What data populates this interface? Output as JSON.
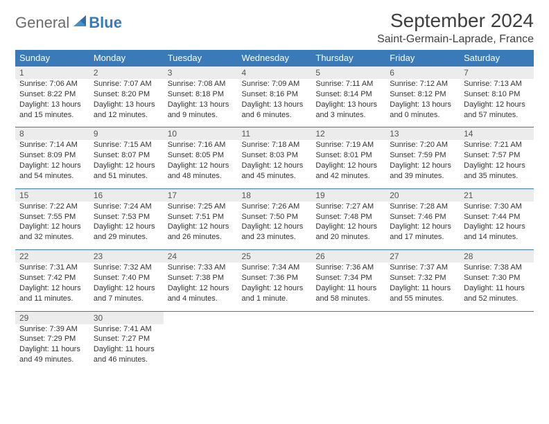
{
  "logo": {
    "general": "General",
    "blue": "Blue"
  },
  "title": "September 2024",
  "location": "Saint-Germain-Laprade, France",
  "colors": {
    "header_bg": "#3a7ab8",
    "header_text": "#ffffff",
    "daynum_bg": "#ececec",
    "rule": "#3a7ab8",
    "text": "#333333",
    "logo_gray": "#6b6b6b",
    "logo_blue": "#3a7ab8"
  },
  "dow": [
    "Sunday",
    "Monday",
    "Tuesday",
    "Wednesday",
    "Thursday",
    "Friday",
    "Saturday"
  ],
  "weeks": [
    [
      {
        "n": "1",
        "sr": "7:06 AM",
        "ss": "8:22 PM",
        "d1": "Daylight: 13 hours",
        "d2": "and 15 minutes."
      },
      {
        "n": "2",
        "sr": "7:07 AM",
        "ss": "8:20 PM",
        "d1": "Daylight: 13 hours",
        "d2": "and 12 minutes."
      },
      {
        "n": "3",
        "sr": "7:08 AM",
        "ss": "8:18 PM",
        "d1": "Daylight: 13 hours",
        "d2": "and 9 minutes."
      },
      {
        "n": "4",
        "sr": "7:09 AM",
        "ss": "8:16 PM",
        "d1": "Daylight: 13 hours",
        "d2": "and 6 minutes."
      },
      {
        "n": "5",
        "sr": "7:11 AM",
        "ss": "8:14 PM",
        "d1": "Daylight: 13 hours",
        "d2": "and 3 minutes."
      },
      {
        "n": "6",
        "sr": "7:12 AM",
        "ss": "8:12 PM",
        "d1": "Daylight: 13 hours",
        "d2": "and 0 minutes."
      },
      {
        "n": "7",
        "sr": "7:13 AM",
        "ss": "8:10 PM",
        "d1": "Daylight: 12 hours",
        "d2": "and 57 minutes."
      }
    ],
    [
      {
        "n": "8",
        "sr": "7:14 AM",
        "ss": "8:09 PM",
        "d1": "Daylight: 12 hours",
        "d2": "and 54 minutes."
      },
      {
        "n": "9",
        "sr": "7:15 AM",
        "ss": "8:07 PM",
        "d1": "Daylight: 12 hours",
        "d2": "and 51 minutes."
      },
      {
        "n": "10",
        "sr": "7:16 AM",
        "ss": "8:05 PM",
        "d1": "Daylight: 12 hours",
        "d2": "and 48 minutes."
      },
      {
        "n": "11",
        "sr": "7:18 AM",
        "ss": "8:03 PM",
        "d1": "Daylight: 12 hours",
        "d2": "and 45 minutes."
      },
      {
        "n": "12",
        "sr": "7:19 AM",
        "ss": "8:01 PM",
        "d1": "Daylight: 12 hours",
        "d2": "and 42 minutes."
      },
      {
        "n": "13",
        "sr": "7:20 AM",
        "ss": "7:59 PM",
        "d1": "Daylight: 12 hours",
        "d2": "and 39 minutes."
      },
      {
        "n": "14",
        "sr": "7:21 AM",
        "ss": "7:57 PM",
        "d1": "Daylight: 12 hours",
        "d2": "and 35 minutes."
      }
    ],
    [
      {
        "n": "15",
        "sr": "7:22 AM",
        "ss": "7:55 PM",
        "d1": "Daylight: 12 hours",
        "d2": "and 32 minutes."
      },
      {
        "n": "16",
        "sr": "7:24 AM",
        "ss": "7:53 PM",
        "d1": "Daylight: 12 hours",
        "d2": "and 29 minutes."
      },
      {
        "n": "17",
        "sr": "7:25 AM",
        "ss": "7:51 PM",
        "d1": "Daylight: 12 hours",
        "d2": "and 26 minutes."
      },
      {
        "n": "18",
        "sr": "7:26 AM",
        "ss": "7:50 PM",
        "d1": "Daylight: 12 hours",
        "d2": "and 23 minutes."
      },
      {
        "n": "19",
        "sr": "7:27 AM",
        "ss": "7:48 PM",
        "d1": "Daylight: 12 hours",
        "d2": "and 20 minutes."
      },
      {
        "n": "20",
        "sr": "7:28 AM",
        "ss": "7:46 PM",
        "d1": "Daylight: 12 hours",
        "d2": "and 17 minutes."
      },
      {
        "n": "21",
        "sr": "7:30 AM",
        "ss": "7:44 PM",
        "d1": "Daylight: 12 hours",
        "d2": "and 14 minutes."
      }
    ],
    [
      {
        "n": "22",
        "sr": "7:31 AM",
        "ss": "7:42 PM",
        "d1": "Daylight: 12 hours",
        "d2": "and 11 minutes."
      },
      {
        "n": "23",
        "sr": "7:32 AM",
        "ss": "7:40 PM",
        "d1": "Daylight: 12 hours",
        "d2": "and 7 minutes."
      },
      {
        "n": "24",
        "sr": "7:33 AM",
        "ss": "7:38 PM",
        "d1": "Daylight: 12 hours",
        "d2": "and 4 minutes."
      },
      {
        "n": "25",
        "sr": "7:34 AM",
        "ss": "7:36 PM",
        "d1": "Daylight: 12 hours",
        "d2": "and 1 minute."
      },
      {
        "n": "26",
        "sr": "7:36 AM",
        "ss": "7:34 PM",
        "d1": "Daylight: 11 hours",
        "d2": "and 58 minutes."
      },
      {
        "n": "27",
        "sr": "7:37 AM",
        "ss": "7:32 PM",
        "d1": "Daylight: 11 hours",
        "d2": "and 55 minutes."
      },
      {
        "n": "28",
        "sr": "7:38 AM",
        "ss": "7:30 PM",
        "d1": "Daylight: 11 hours",
        "d2": "and 52 minutes."
      }
    ],
    [
      {
        "n": "29",
        "sr": "7:39 AM",
        "ss": "7:29 PM",
        "d1": "Daylight: 11 hours",
        "d2": "and 49 minutes."
      },
      {
        "n": "30",
        "sr": "7:41 AM",
        "ss": "7:27 PM",
        "d1": "Daylight: 11 hours",
        "d2": "and 46 minutes."
      },
      null,
      null,
      null,
      null,
      null
    ]
  ],
  "labels": {
    "sunrise": "Sunrise:",
    "sunset": "Sunset:"
  }
}
